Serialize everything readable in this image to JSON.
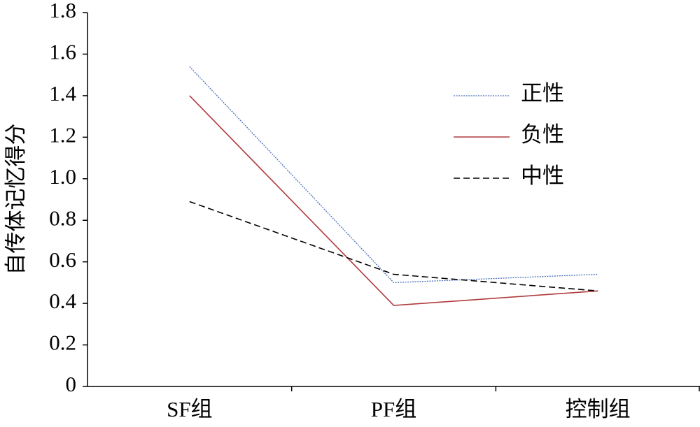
{
  "chart_data": {
    "type": "line",
    "y_label": "自传体记忆得分",
    "categories": [
      "SF组",
      "PF组",
      "控制组"
    ],
    "series": [
      {
        "name": "正性",
        "color": "#4a6fb8",
        "line_style": "dotted",
        "values": [
          1.54,
          0.5,
          0.54
        ]
      },
      {
        "name": "负性",
        "color": "#b03a3e",
        "line_style": "solid",
        "values": [
          1.4,
          0.39,
          0.46
        ]
      },
      {
        "name": "中性",
        "color": "#000000",
        "line_style": "dashed",
        "values": [
          0.89,
          0.54,
          0.46
        ]
      }
    ],
    "ylim": [
      0,
      1.8
    ],
    "yticks": [
      0,
      0.2,
      0.4,
      0.6,
      0.8,
      {
        "value": 1,
        "label": "1.0"
      },
      1.2,
      1.4,
      1.6,
      1.8
    ],
    "grid": false,
    "legend": "right"
  }
}
